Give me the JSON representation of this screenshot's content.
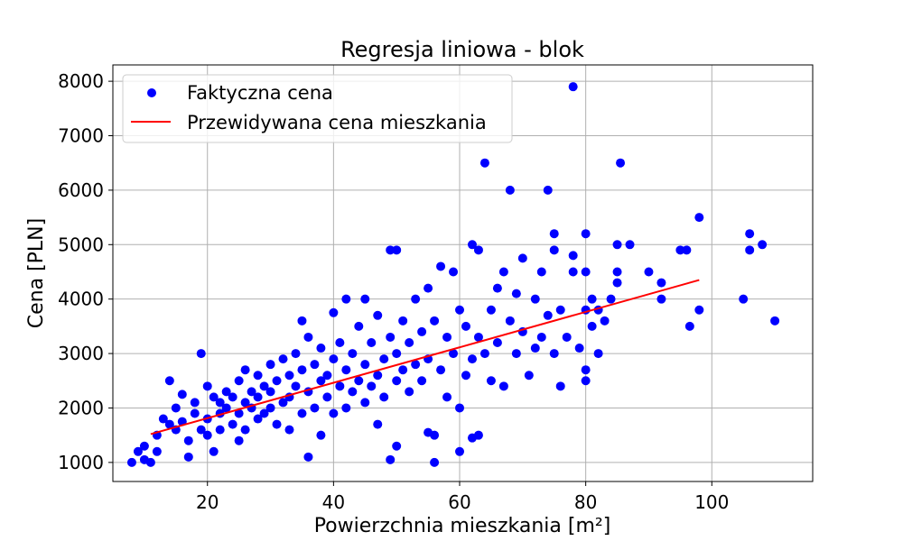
{
  "chart_data": {
    "type": "scatter",
    "title": "Regresja liniowa - blok",
    "xlabel": "Powierzchnia mieszkania [m²]",
    "ylabel": "Cena [PLN]",
    "xlim": [
      5,
      116
    ],
    "ylim": [
      650,
      8300
    ],
    "xticks": [
      20,
      40,
      60,
      80,
      100
    ],
    "yticks": [
      1000,
      2000,
      3000,
      4000,
      5000,
      6000,
      7000,
      8000
    ],
    "grid": true,
    "legend_position": "top-left",
    "series": [
      {
        "name": "Faktyczna cena",
        "kind": "scatter",
        "color": "#0000ff",
        "points": [
          [
            8,
            1000
          ],
          [
            9,
            1200
          ],
          [
            10,
            1300
          ],
          [
            10,
            1050
          ],
          [
            11,
            1000
          ],
          [
            12,
            1200
          ],
          [
            12,
            1500
          ],
          [
            13,
            1800
          ],
          [
            14,
            1700
          ],
          [
            14,
            2500
          ],
          [
            15,
            1600
          ],
          [
            15,
            2000
          ],
          [
            16,
            2250
          ],
          [
            16,
            1750
          ],
          [
            17,
            1400
          ],
          [
            17,
            1100
          ],
          [
            18,
            1900
          ],
          [
            18,
            2100
          ],
          [
            19,
            1600
          ],
          [
            19,
            3000
          ],
          [
            20,
            2400
          ],
          [
            20,
            1800
          ],
          [
            20,
            1500
          ],
          [
            21,
            1200
          ],
          [
            21,
            2200
          ],
          [
            22,
            1900
          ],
          [
            22,
            2100
          ],
          [
            22,
            1600
          ],
          [
            23,
            2000
          ],
          [
            23,
            2300
          ],
          [
            24,
            1700
          ],
          [
            24,
            2200
          ],
          [
            25,
            1400
          ],
          [
            25,
            2500
          ],
          [
            25,
            1900
          ],
          [
            26,
            2100
          ],
          [
            26,
            1600
          ],
          [
            26,
            2700
          ],
          [
            27,
            2000
          ],
          [
            27,
            2300
          ],
          [
            28,
            1800
          ],
          [
            28,
            2600
          ],
          [
            28,
            2200
          ],
          [
            29,
            2400
          ],
          [
            29,
            1900
          ],
          [
            30,
            2000
          ],
          [
            30,
            2800
          ],
          [
            30,
            2300
          ],
          [
            31,
            1700
          ],
          [
            31,
            2500
          ],
          [
            32,
            2100
          ],
          [
            32,
            2900
          ],
          [
            33,
            2200
          ],
          [
            33,
            1600
          ],
          [
            33,
            2600
          ],
          [
            34,
            3000
          ],
          [
            34,
            2400
          ],
          [
            35,
            1900
          ],
          [
            35,
            3600
          ],
          [
            35,
            2700
          ],
          [
            36,
            2300
          ],
          [
            36,
            1100
          ],
          [
            36,
            3300
          ],
          [
            37,
            2000
          ],
          [
            37,
            2800
          ],
          [
            38,
            2500
          ],
          [
            38,
            1500
          ],
          [
            38,
            3100
          ],
          [
            39,
            2200
          ],
          [
            39,
            2600
          ],
          [
            40,
            2900
          ],
          [
            40,
            1900
          ],
          [
            40,
            3750
          ],
          [
            41,
            2400
          ],
          [
            41,
            3200
          ],
          [
            42,
            2000
          ],
          [
            42,
            2700
          ],
          [
            42,
            4000
          ],
          [
            43,
            2300
          ],
          [
            43,
            3000
          ],
          [
            44,
            2500
          ],
          [
            44,
            3500
          ],
          [
            45,
            2100
          ],
          [
            45,
            2800
          ],
          [
            45,
            4000
          ],
          [
            46,
            3200
          ],
          [
            46,
            2400
          ],
          [
            47,
            2600
          ],
          [
            47,
            1700
          ],
          [
            47,
            3700
          ],
          [
            48,
            2900
          ],
          [
            48,
            2200
          ],
          [
            49,
            4900
          ],
          [
            49,
            3300
          ],
          [
            49,
            1050
          ],
          [
            50,
            2500
          ],
          [
            50,
            4900
          ],
          [
            50,
            3000
          ],
          [
            50,
            1300
          ],
          [
            51,
            2700
          ],
          [
            51,
            3600
          ],
          [
            52,
            2300
          ],
          [
            52,
            3200
          ],
          [
            53,
            4000
          ],
          [
            53,
            2800
          ],
          [
            54,
            2500
          ],
          [
            54,
            3400
          ],
          [
            55,
            4200
          ],
          [
            55,
            1550
          ],
          [
            55,
            2900
          ],
          [
            56,
            1500
          ],
          [
            56,
            3600
          ],
          [
            56,
            1000
          ],
          [
            57,
            2700
          ],
          [
            57,
            4600
          ],
          [
            58,
            3300
          ],
          [
            58,
            2200
          ],
          [
            59,
            4500
          ],
          [
            59,
            3000
          ],
          [
            60,
            2000
          ],
          [
            60,
            3800
          ],
          [
            60,
            1200
          ],
          [
            61,
            2600
          ],
          [
            61,
            3500
          ],
          [
            62,
            5000
          ],
          [
            62,
            2900
          ],
          [
            62,
            1450
          ],
          [
            63,
            3300
          ],
          [
            63,
            1500
          ],
          [
            63,
            4900
          ],
          [
            64,
            6500
          ],
          [
            64,
            3000
          ],
          [
            65,
            3800
          ],
          [
            65,
            2500
          ],
          [
            66,
            4200
          ],
          [
            66,
            3200
          ],
          [
            67,
            4500
          ],
          [
            67,
            2400
          ],
          [
            68,
            6000
          ],
          [
            68,
            3600
          ],
          [
            69,
            4100
          ],
          [
            69,
            3000
          ],
          [
            70,
            4750
          ],
          [
            70,
            3400
          ],
          [
            71,
            2600
          ],
          [
            72,
            4000
          ],
          [
            72,
            3100
          ],
          [
            73,
            4500
          ],
          [
            73,
            3300
          ],
          [
            74,
            6000
          ],
          [
            74,
            3700
          ],
          [
            75,
            5200
          ],
          [
            75,
            4900
          ],
          [
            75,
            3000
          ],
          [
            76,
            2400
          ],
          [
            76,
            3800
          ],
          [
            77,
            3300
          ],
          [
            78,
            7900
          ],
          [
            78,
            4800
          ],
          [
            78,
            4500
          ],
          [
            79,
            3100
          ],
          [
            80,
            5200
          ],
          [
            80,
            4500
          ],
          [
            80,
            3800
          ],
          [
            80,
            2700
          ],
          [
            80,
            2500
          ],
          [
            81,
            3500
          ],
          [
            81,
            4000
          ],
          [
            82,
            3800
          ],
          [
            82,
            3000
          ],
          [
            83,
            3600
          ],
          [
            84,
            4000
          ],
          [
            85,
            5000
          ],
          [
            85,
            4500
          ],
          [
            85,
            4300
          ],
          [
            85.5,
            6500
          ],
          [
            87,
            5000
          ],
          [
            90,
            4500
          ],
          [
            92,
            4300
          ],
          [
            92,
            4000
          ],
          [
            95,
            4900
          ],
          [
            96,
            4900
          ],
          [
            96.5,
            3500
          ],
          [
            98,
            5500
          ],
          [
            98,
            3800
          ],
          [
            105,
            4000
          ],
          [
            106,
            5200
          ],
          [
            106,
            4900
          ],
          [
            108,
            5000
          ],
          [
            110,
            3600
          ]
        ]
      },
      {
        "name": "Przewidywana cena mieszkania",
        "kind": "line",
        "color": "#ff0000",
        "points": [
          [
            11,
            1520
          ],
          [
            98,
            4350
          ]
        ]
      }
    ]
  }
}
